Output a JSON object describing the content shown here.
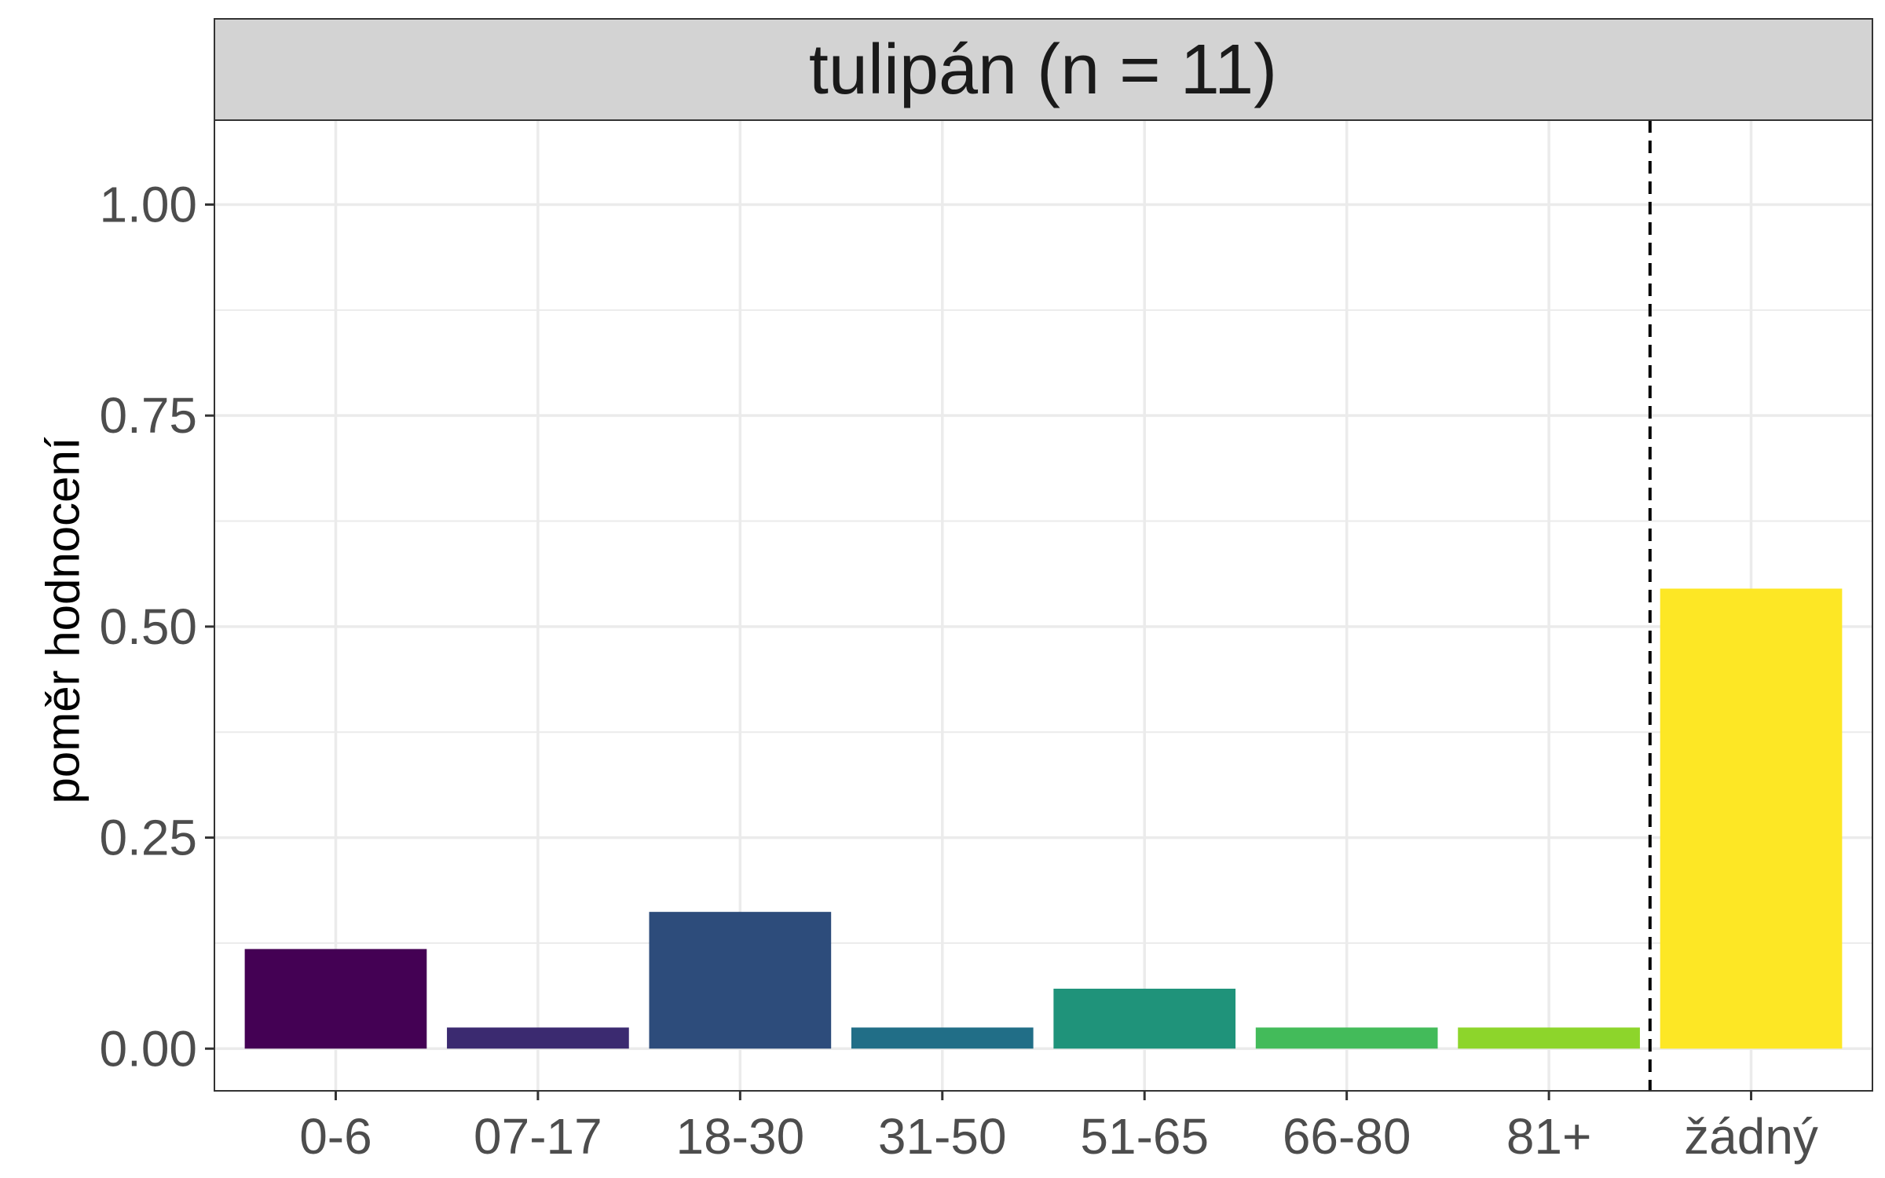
{
  "chart_data": {
    "type": "bar",
    "title": "tulipán (n = 11)",
    "xlabel": "",
    "ylabel": "poměr hodnocení",
    "categories": [
      "0-6",
      "07-17",
      "18-30",
      "31-50",
      "51-65",
      "66-80",
      "81+",
      "žádný"
    ],
    "values": [
      0.118,
      0.025,
      0.162,
      0.025,
      0.071,
      0.025,
      0.025,
      0.545
    ],
    "colors": [
      "#440154",
      "#3b2a70",
      "#2d4c7b",
      "#216e87",
      "#1f937a",
      "#43bb5a",
      "#8dd52b",
      "#fde725"
    ],
    "ylim": [
      -0.05,
      1.1
    ],
    "yticks": [
      "0.00",
      "0.25",
      "0.50",
      "0.75",
      "1.00"
    ],
    "ytick_values": [
      0,
      0.25,
      0.5,
      0.75,
      1.0
    ],
    "separator_after_category": "81+",
    "separator_style": "dashed",
    "grid": true,
    "legend": "none"
  }
}
